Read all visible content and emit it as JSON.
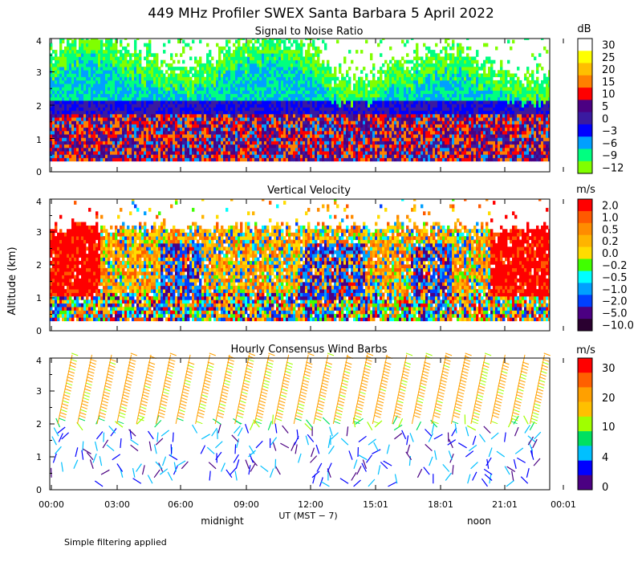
{
  "title": "449 MHz Profiler SWEX Santa Barbara  5 April 2022",
  "footnote": "Simple filtering applied",
  "chart_data": [
    {
      "type": "heatmap",
      "title": "Signal to Noise Ratio",
      "ylabel": "",
      "ylim": [
        0,
        4
      ],
      "yticks": [
        "0",
        "1",
        "2",
        "3",
        "4"
      ],
      "colorbar": {
        "unit": "dB",
        "labels": [
          "30",
          "25",
          "20",
          "15",
          "10",
          "5",
          "0",
          "−3",
          "−6",
          "−9",
          "−12"
        ],
        "colors": [
          "#ffffff",
          "#ffff00",
          "#ffbf00",
          "#ff8000",
          "#ff0000",
          "#4b0082",
          "#3a1aa0",
          "#0000ff",
          "#00a0ff",
          "#00ff80",
          "#80ff00"
        ]
      }
    },
    {
      "type": "heatmap",
      "title": "Vertical Velocity",
      "ylabel": "Altitude (km)",
      "ylim": [
        0,
        4
      ],
      "yticks": [
        "0",
        "1",
        "2",
        "3",
        "4"
      ],
      "colorbar": {
        "unit": "m/s",
        "labels": [
          "2.0",
          "1.0",
          "0.5",
          "0.2",
          "0.0",
          "−0.2",
          "−0.5",
          "−1.0",
          "−2.0",
          "−5.0",
          "−10.0"
        ],
        "colors": [
          "#ff0000",
          "#ff5a00",
          "#ff8c00",
          "#ffb400",
          "#ffdc00",
          "#40ff00",
          "#00ffff",
          "#00a0ff",
          "#0040ff",
          "#4b0082",
          "#2a0030"
        ]
      }
    },
    {
      "type": "scatter",
      "title": "Hourly Consensus Wind Barbs",
      "ylabel": "",
      "ylim": [
        0,
        4
      ],
      "yticks": [
        "0",
        "1",
        "2",
        "3",
        "4"
      ],
      "colorbar": {
        "unit": "m/s",
        "labels": [
          "30",
          "20",
          "10",
          "4",
          "0"
        ],
        "colors": [
          "#ff0000",
          "#ff6000",
          "#ffa000",
          "#ffc000",
          "#a0ff00",
          "#00e060",
          "#00c0ff",
          "#0000ff",
          "#4b0082"
        ]
      }
    }
  ],
  "xaxis": {
    "label": "UT  (MST − 7)",
    "ticks": [
      "00:00",
      "03:00",
      "06:00",
      "09:00",
      "12:00",
      "15:01",
      "18:01",
      "21:01",
      "00:01"
    ],
    "markers": [
      "midnight",
      "noon"
    ]
  }
}
